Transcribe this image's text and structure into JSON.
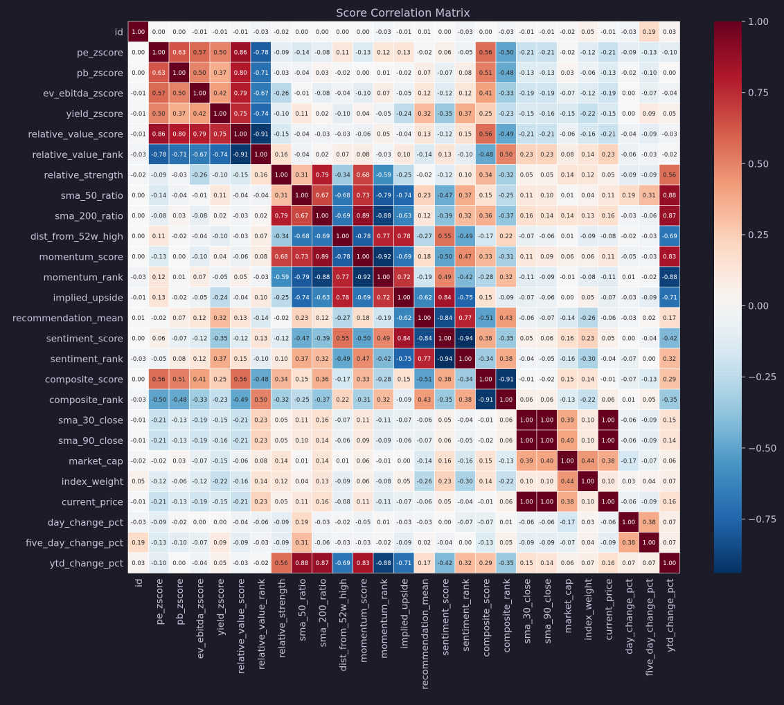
{
  "chart_data": {
    "type": "heatmap",
    "title": "Score Correlation Matrix",
    "labels": [
      "id",
      "pe_zscore",
      "pb_zscore",
      "ev_ebitda_zscore",
      "yield_zscore",
      "relative_value_score",
      "relative_value_rank",
      "relative_strength",
      "sma_50_ratio",
      "sma_200_ratio",
      "dist_from_52w_high",
      "momentum_score",
      "momentum_rank",
      "implied_upside",
      "recommendation_mean",
      "sentiment_score",
      "sentiment_rank",
      "composite_score",
      "composite_rank",
      "sma_30_close",
      "sma_90_close",
      "market_cap",
      "index_weight",
      "current_price",
      "day_change_pct",
      "five_day_change_pct",
      "ytd_change_pct"
    ],
    "matrix": [
      [
        1.0,
        -0.0,
        -0.0,
        -0.01,
        -0.01,
        -0.01,
        -0.03,
        -0.02,
        0.0,
        -0.0,
        -0.0,
        -0.0,
        -0.03,
        -0.01,
        0.01,
        0.0,
        -0.03,
        -0.0,
        -0.03,
        -0.01,
        -0.01,
        -0.02,
        0.05,
        -0.01,
        -0.03,
        0.19,
        0.03
      ],
      [
        -0.0,
        1.0,
        0.63,
        0.57,
        0.5,
        0.86,
        -0.78,
        -0.09,
        -0.14,
        -0.08,
        0.11,
        -0.13,
        0.12,
        0.13,
        -0.02,
        0.06,
        -0.05,
        0.56,
        -0.5,
        -0.21,
        -0.21,
        -0.02,
        -0.12,
        -0.21,
        -0.09,
        -0.13,
        -0.1
      ],
      [
        -0.0,
        0.63,
        1.0,
        0.5,
        0.37,
        0.8,
        -0.71,
        -0.03,
        -0.04,
        0.03,
        -0.02,
        -0.0,
        0.01,
        -0.02,
        0.07,
        -0.07,
        0.08,
        0.51,
        -0.48,
        -0.13,
        -0.13,
        0.03,
        -0.06,
        -0.13,
        -0.02,
        -0.1,
        0.0
      ],
      [
        -0.01,
        0.57,
        0.5,
        1.0,
        0.42,
        0.79,
        -0.67,
        -0.26,
        -0.01,
        -0.08,
        -0.04,
        -0.1,
        0.07,
        -0.05,
        0.12,
        -0.12,
        0.12,
        0.41,
        -0.33,
        -0.19,
        -0.19,
        -0.07,
        -0.12,
        -0.19,
        0.0,
        -0.07,
        -0.04
      ],
      [
        -0.01,
        0.5,
        0.37,
        0.42,
        1.0,
        0.75,
        -0.74,
        -0.1,
        0.11,
        0.02,
        -0.1,
        0.04,
        -0.05,
        -0.24,
        0.32,
        -0.35,
        0.37,
        0.25,
        -0.23,
        -0.15,
        -0.16,
        -0.15,
        -0.22,
        -0.15,
        0.0,
        0.09,
        0.05
      ],
      [
        -0.01,
        0.86,
        0.8,
        0.79,
        0.75,
        1.0,
        -0.91,
        -0.15,
        -0.04,
        -0.03,
        -0.03,
        -0.06,
        0.05,
        -0.04,
        0.13,
        -0.12,
        0.15,
        0.56,
        -0.49,
        -0.21,
        -0.21,
        -0.06,
        -0.16,
        -0.21,
        -0.04,
        -0.09,
        -0.03
      ],
      [
        -0.03,
        -0.78,
        -0.71,
        -0.67,
        -0.74,
        -0.91,
        1.0,
        0.16,
        -0.04,
        0.02,
        0.07,
        0.08,
        -0.03,
        0.1,
        -0.14,
        0.13,
        -0.1,
        -0.48,
        0.5,
        0.23,
        0.23,
        0.08,
        0.14,
        0.23,
        -0.06,
        -0.03,
        -0.02
      ],
      [
        -0.02,
        -0.09,
        -0.03,
        -0.26,
        -0.1,
        -0.15,
        0.16,
        1.0,
        0.31,
        0.79,
        -0.34,
        0.68,
        -0.59,
        -0.25,
        -0.02,
        -0.12,
        0.1,
        0.34,
        -0.32,
        0.05,
        0.05,
        0.14,
        0.12,
        0.05,
        -0.09,
        -0.09,
        0.56
      ],
      [
        0.0,
        -0.14,
        -0.04,
        -0.01,
        0.11,
        -0.04,
        -0.04,
        0.31,
        1.0,
        0.67,
        -0.68,
        0.73,
        -0.79,
        -0.74,
        0.23,
        -0.47,
        0.37,
        0.15,
        -0.25,
        0.11,
        0.1,
        0.01,
        0.04,
        0.11,
        0.19,
        0.31,
        0.88
      ],
      [
        -0.0,
        -0.08,
        0.03,
        -0.08,
        0.02,
        -0.03,
        0.02,
        0.79,
        0.67,
        1.0,
        -0.69,
        0.89,
        -0.88,
        -0.63,
        0.12,
        -0.39,
        0.32,
        0.36,
        -0.37,
        0.16,
        0.14,
        0.14,
        0.13,
        0.16,
        -0.03,
        -0.06,
        0.87
      ],
      [
        -0.0,
        0.11,
        -0.02,
        -0.04,
        -0.1,
        -0.03,
        0.07,
        -0.34,
        -0.68,
        -0.69,
        1.0,
        -0.78,
        0.77,
        0.78,
        -0.27,
        0.55,
        -0.49,
        -0.17,
        0.22,
        -0.07,
        -0.06,
        0.01,
        -0.09,
        -0.08,
        -0.02,
        -0.03,
        -0.69
      ],
      [
        -0.0,
        -0.13,
        -0.0,
        -0.1,
        0.04,
        -0.06,
        0.08,
        0.68,
        0.73,
        0.89,
        -0.78,
        1.0,
        -0.92,
        -0.69,
        0.18,
        -0.5,
        0.47,
        0.33,
        -0.31,
        0.11,
        0.09,
        0.06,
        0.06,
        0.11,
        -0.05,
        -0.03,
        0.83
      ],
      [
        -0.03,
        0.12,
        0.01,
        0.07,
        -0.05,
        0.05,
        -0.03,
        -0.59,
        -0.79,
        -0.88,
        0.77,
        -0.92,
        1.0,
        0.72,
        -0.19,
        0.49,
        -0.42,
        -0.28,
        0.32,
        -0.11,
        -0.09,
        -0.01,
        -0.08,
        -0.11,
        0.01,
        -0.02,
        -0.88
      ],
      [
        -0.01,
        0.13,
        -0.02,
        -0.05,
        -0.24,
        -0.04,
        0.1,
        -0.25,
        -0.74,
        -0.63,
        0.78,
        -0.69,
        0.72,
        1.0,
        -0.62,
        0.84,
        -0.75,
        0.15,
        -0.09,
        -0.07,
        -0.06,
        -0.0,
        0.05,
        -0.07,
        -0.03,
        -0.09,
        -0.71
      ],
      [
        0.01,
        -0.02,
        0.07,
        0.12,
        0.32,
        0.13,
        -0.14,
        -0.02,
        0.23,
        0.12,
        -0.27,
        0.18,
        -0.19,
        -0.62,
        1.0,
        -0.84,
        0.77,
        -0.51,
        0.43,
        -0.06,
        -0.07,
        -0.14,
        -0.26,
        -0.06,
        -0.03,
        0.02,
        0.17
      ],
      [
        0.0,
        0.06,
        -0.07,
        -0.12,
        -0.35,
        -0.12,
        0.13,
        -0.12,
        -0.47,
        -0.39,
        0.55,
        -0.5,
        0.49,
        0.84,
        -0.84,
        1.0,
        -0.94,
        0.38,
        -0.35,
        0.05,
        0.06,
        0.16,
        0.23,
        0.05,
        0.0,
        -0.04,
        -0.42
      ],
      [
        -0.03,
        -0.05,
        0.08,
        0.12,
        0.37,
        0.15,
        -0.1,
        0.1,
        0.37,
        0.32,
        -0.49,
        0.47,
        -0.42,
        -0.75,
        0.77,
        -0.94,
        1.0,
        -0.34,
        0.38,
        -0.04,
        -0.05,
        -0.16,
        -0.3,
        -0.04,
        -0.07,
        0.0,
        0.32
      ],
      [
        -0.0,
        0.56,
        0.51,
        0.41,
        0.25,
        0.56,
        -0.48,
        0.34,
        0.15,
        0.36,
        -0.17,
        0.33,
        -0.28,
        0.15,
        -0.51,
        0.38,
        -0.34,
        1.0,
        -0.91,
        -0.01,
        -0.02,
        0.15,
        0.14,
        -0.01,
        -0.07,
        -0.13,
        0.29
      ],
      [
        -0.03,
        -0.5,
        -0.48,
        -0.33,
        -0.23,
        -0.49,
        0.5,
        -0.32,
        -0.25,
        -0.37,
        0.22,
        -0.31,
        0.32,
        -0.09,
        0.43,
        -0.35,
        0.38,
        -0.91,
        1.0,
        0.06,
        0.06,
        -0.13,
        -0.22,
        0.06,
        0.01,
        0.05,
        -0.35
      ],
      [
        -0.01,
        -0.21,
        -0.13,
        -0.19,
        -0.15,
        -0.21,
        0.23,
        0.05,
        0.11,
        0.16,
        -0.07,
        0.11,
        -0.11,
        -0.07,
        -0.06,
        0.05,
        -0.04,
        -0.01,
        0.06,
        1.0,
        1.0,
        0.39,
        0.1,
        1.0,
        -0.06,
        -0.09,
        0.15
      ],
      [
        -0.01,
        -0.21,
        -0.13,
        -0.19,
        -0.16,
        -0.21,
        0.23,
        0.05,
        0.1,
        0.14,
        -0.06,
        0.09,
        -0.09,
        -0.06,
        -0.07,
        0.06,
        -0.05,
        -0.02,
        0.06,
        1.0,
        1.0,
        0.4,
        0.1,
        1.0,
        -0.06,
        -0.09,
        0.14
      ],
      [
        -0.02,
        -0.02,
        0.03,
        -0.07,
        -0.15,
        -0.06,
        0.08,
        0.14,
        0.01,
        0.14,
        0.01,
        0.06,
        -0.01,
        -0.0,
        -0.14,
        0.16,
        -0.16,
        0.15,
        -0.13,
        0.39,
        0.4,
        1.0,
        0.44,
        0.38,
        -0.17,
        -0.07,
        0.06
      ],
      [
        0.05,
        -0.12,
        -0.06,
        -0.12,
        -0.22,
        -0.16,
        0.14,
        0.12,
        0.04,
        0.13,
        -0.09,
        0.06,
        -0.08,
        0.05,
        -0.26,
        0.23,
        -0.3,
        0.14,
        -0.22,
        0.1,
        0.1,
        0.44,
        1.0,
        0.1,
        0.03,
        0.04,
        0.07
      ],
      [
        -0.01,
        -0.21,
        -0.13,
        -0.19,
        -0.15,
        -0.21,
        0.23,
        0.05,
        0.11,
        0.16,
        -0.08,
        0.11,
        -0.11,
        -0.07,
        -0.06,
        0.05,
        -0.04,
        -0.01,
        0.06,
        1.0,
        1.0,
        0.38,
        0.1,
        1.0,
        -0.06,
        -0.09,
        0.16
      ],
      [
        -0.03,
        -0.09,
        -0.02,
        0.0,
        0.0,
        -0.04,
        -0.06,
        -0.09,
        0.19,
        -0.03,
        -0.02,
        -0.05,
        0.01,
        -0.03,
        -0.03,
        0.0,
        -0.07,
        -0.07,
        0.01,
        -0.06,
        -0.06,
        -0.17,
        0.03,
        -0.06,
        1.0,
        0.38,
        0.07
      ],
      [
        0.19,
        -0.13,
        -0.1,
        -0.07,
        0.09,
        -0.09,
        -0.03,
        -0.09,
        0.31,
        -0.06,
        -0.03,
        -0.03,
        -0.02,
        -0.09,
        0.02,
        -0.04,
        0.0,
        -0.13,
        0.05,
        -0.09,
        -0.09,
        -0.07,
        0.04,
        -0.09,
        0.38,
        1.0,
        0.07
      ],
      [
        0.03,
        -0.1,
        0.0,
        -0.04,
        0.05,
        -0.03,
        -0.02,
        0.56,
        0.88,
        0.87,
        -0.69,
        0.83,
        -0.88,
        -0.71,
        0.17,
        -0.42,
        0.32,
        0.29,
        -0.35,
        0.15,
        0.14,
        0.06,
        0.07,
        0.16,
        0.07,
        0.07,
        1.0
      ]
    ],
    "value_range": [
      -0.94,
      1.0
    ],
    "colormap": "RdBu_r",
    "colorbar_ticks": [
      "1.00",
      "0.75",
      "0.50",
      "0.25",
      "0.00",
      "−0.25",
      "−0.50",
      "−0.75"
    ],
    "colorbar_tick_values": [
      1.0,
      0.75,
      0.5,
      0.25,
      0.0,
      -0.25,
      -0.5,
      -0.75
    ],
    "annotations_format": "2 decimals",
    "grid": false,
    "legend": "colorbar-right"
  },
  "colors": {
    "background": "#1c1c28",
    "text": "#c4c4d8",
    "title": "#c4c4d8"
  }
}
